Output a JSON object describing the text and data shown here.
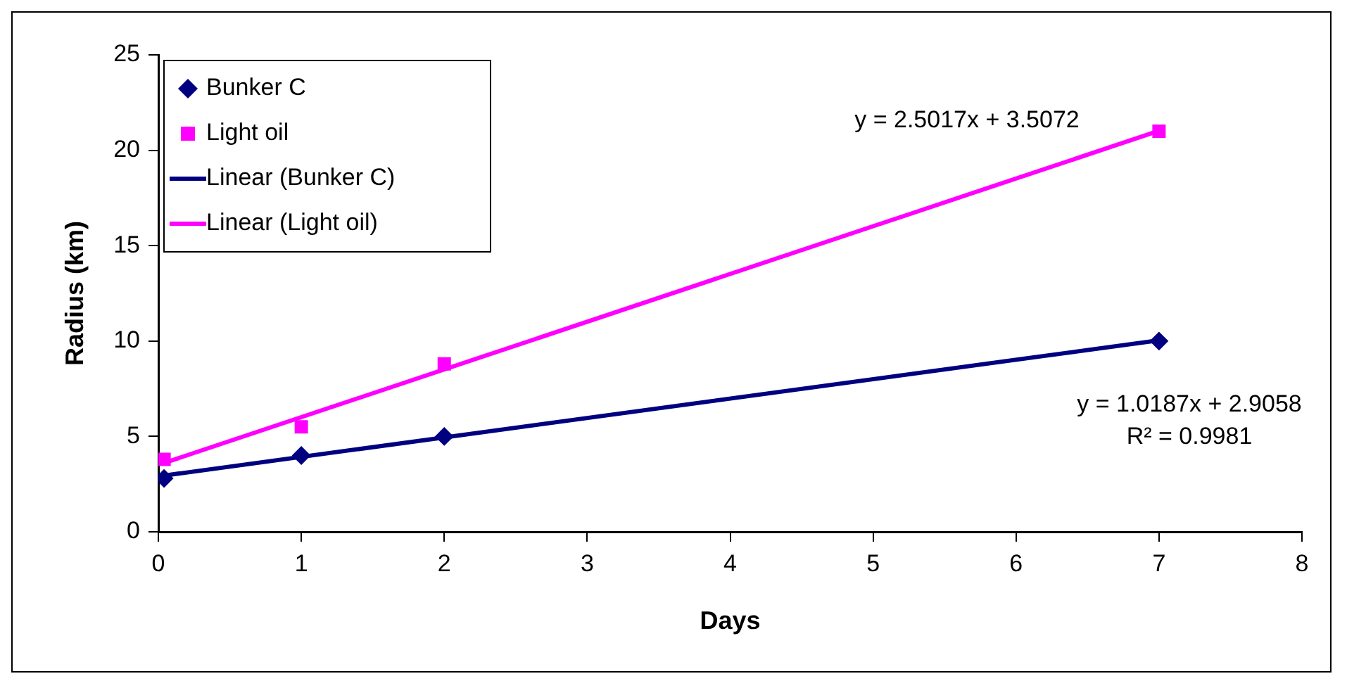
{
  "chart_data": {
    "type": "scatter",
    "xlabel": "Days",
    "ylabel": "Radius (km)",
    "series": [
      {
        "name": "Bunker C",
        "type": "scatter",
        "marker": "diamond",
        "color": "#000080",
        "x": [
          0.04,
          1,
          2,
          7
        ],
        "values": [
          2.8,
          4,
          5,
          10
        ]
      },
      {
        "name": "Light oil",
        "type": "scatter",
        "marker": "square",
        "color": "#ff00ff",
        "x": [
          0.04,
          1,
          2,
          7
        ],
        "values": [
          3.8,
          5.5,
          8.8,
          21
        ]
      },
      {
        "name": "Linear (Bunker C)",
        "type": "line",
        "marker": "none",
        "color": "#000080",
        "x": [
          0.04,
          7
        ],
        "values": [
          2.95,
          10.04
        ]
      },
      {
        "name": "Linear (Light oil)",
        "type": "line",
        "marker": "none",
        "color": "#ff00ff",
        "x": [
          0.04,
          7
        ],
        "values": [
          3.61,
          21.02
        ]
      }
    ],
    "annotations": [
      "y = 2.5017x + 3.5072",
      "y = 1.0187x + 2.9058",
      "R² = 0.9981"
    ],
    "xlim": [
      0,
      8
    ],
    "xticks": [
      0,
      1,
      2,
      3,
      4,
      5,
      6,
      7,
      8
    ],
    "ylim": [
      0,
      25
    ],
    "yticks": [
      0,
      5,
      10,
      15,
      20,
      25
    ],
    "grid": false,
    "legend": "top left"
  }
}
